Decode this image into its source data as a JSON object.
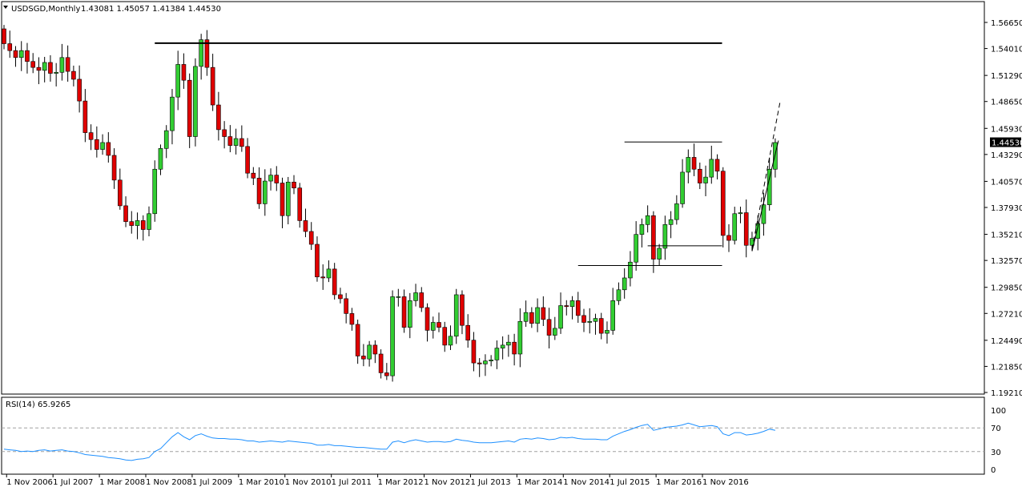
{
  "header": {
    "symbol_line": "USDSGD,Monthly",
    "ohlc": "1.43081 1.45057 1.41384 1.44530"
  },
  "rsi": {
    "label": "RSI(14) 65.9265",
    "levels": [
      70,
      30
    ],
    "axis_labels": [
      "100",
      "70",
      "30",
      "0"
    ]
  },
  "price_axis": {
    "ticks": [
      "1.56650",
      "1.54010",
      "1.51290",
      "1.48650",
      "1.45930",
      "1.43290",
      "1.40570",
      "1.37930",
      "1.35210",
      "1.32570",
      "1.29850",
      "1.27210",
      "1.24490",
      "1.21850",
      "1.19210"
    ],
    "current_price": "1.44530"
  },
  "time_axis": {
    "labels": [
      "1 Nov 2006",
      "1 Jul 2007",
      "1 Mar 2008",
      "1 Nov 2008",
      "1 Jul 2009",
      "1 Mar 2010",
      "1 Nov 2010",
      "1 Jul 2011",
      "1 Mar 2012",
      "1 Nov 2012",
      "1 Jul 2013",
      "1 Mar 2014",
      "1 Nov 2014",
      "1 Jul 2015",
      "1 Mar 2016",
      "1 Nov 2016"
    ]
  },
  "colors": {
    "bull": "#32cd32",
    "bear": "#e00000",
    "rsi_line": "#1e90ff",
    "grid_dash": "#a0a0a0",
    "current_price_box": "#000000"
  },
  "chart_data": {
    "type": "candlestick",
    "symbol": "USDSGD",
    "timeframe": "Monthly",
    "ylim": [
      1.1921,
      1.5665
    ],
    "start": "2006-10",
    "closes": [
      1.545,
      1.538,
      1.531,
      1.538,
      1.527,
      1.521,
      1.518,
      1.526,
      1.515,
      1.516,
      1.531,
      1.517,
      1.509,
      1.487,
      1.455,
      1.448,
      1.438,
      1.445,
      1.432,
      1.407,
      1.381,
      1.365,
      1.361,
      1.366,
      1.357,
      1.373,
      1.418,
      1.439,
      1.457,
      1.491,
      1.524,
      1.508,
      1.451,
      1.522,
      1.549,
      1.521,
      1.483,
      1.458,
      1.451,
      1.442,
      1.449,
      1.441,
      1.414,
      1.409,
      1.383,
      1.406,
      1.412,
      1.404,
      1.371,
      1.405,
      1.399,
      1.366,
      1.355,
      1.342,
      1.309,
      1.308,
      1.317,
      1.291,
      1.287,
      1.272,
      1.261,
      1.229,
      1.226,
      1.24,
      1.231,
      1.212,
      1.209,
      1.289,
      1.289,
      1.258,
      1.285,
      1.293,
      1.278,
      1.255,
      1.263,
      1.258,
      1.24,
      1.249,
      1.291,
      1.26,
      1.245,
      1.222,
      1.221,
      1.224,
      1.225,
      1.237,
      1.24,
      1.243,
      1.231,
      1.264,
      1.273,
      1.262,
      1.278,
      1.266,
      1.25,
      1.257,
      1.28,
      1.279,
      1.285,
      1.27,
      1.263,
      1.264,
      1.267,
      1.252,
      1.255,
      1.285,
      1.296,
      1.308,
      1.324,
      1.352,
      1.362,
      1.371,
      1.327,
      1.338,
      1.362,
      1.367,
      1.383,
      1.415,
      1.43,
      1.418,
      1.404,
      1.41,
      1.428,
      1.416,
      1.351,
      1.346,
      1.373,
      1.374,
      1.341,
      1.348,
      1.363,
      1.382,
      1.418,
      1.445
    ],
    "annotations": [
      {
        "type": "horizontal_line",
        "price": 1.5455,
        "from": "2008-12",
        "to": "2017-01"
      },
      {
        "type": "horizontal_line",
        "price": 1.4455,
        "from": "2015-09",
        "to": "2017-01"
      },
      {
        "type": "horizontal_line",
        "price": 1.3405,
        "from": "2016-01",
        "to": "2017-01"
      },
      {
        "type": "horizontal_line",
        "price": 1.3205,
        "from": "2015-01",
        "to": "2017-01"
      }
    ],
    "rsi_series": [
      34,
      33,
      32,
      30,
      31,
      30,
      32,
      33,
      31,
      32,
      33,
      31,
      30,
      28,
      25,
      24,
      23,
      22,
      20,
      19,
      18,
      16,
      15,
      17,
      18,
      20,
      30,
      35,
      45,
      55,
      62,
      55,
      50,
      57,
      60,
      56,
      53,
      52,
      52,
      51,
      51,
      50,
      48,
      48,
      46,
      47,
      48,
      47,
      46,
      48,
      47,
      46,
      45,
      44,
      41,
      41,
      42,
      40,
      40,
      39,
      38,
      37,
      37,
      36,
      35,
      34,
      34,
      46,
      48,
      45,
      48,
      50,
      48,
      46,
      47,
      47,
      46,
      47,
      51,
      49,
      48,
      46,
      45,
      45,
      45,
      46,
      47,
      48,
      46,
      51,
      52,
      51,
      53,
      52,
      50,
      51,
      54,
      53,
      54,
      52,
      51,
      51,
      51,
      50,
      50,
      56,
      60,
      64,
      67,
      71,
      74,
      76,
      66,
      68,
      71,
      72,
      73,
      75,
      78,
      75,
      72,
      73,
      74,
      72,
      60,
      57,
      62,
      62,
      58,
      59,
      61,
      64,
      68,
      66
    ]
  }
}
